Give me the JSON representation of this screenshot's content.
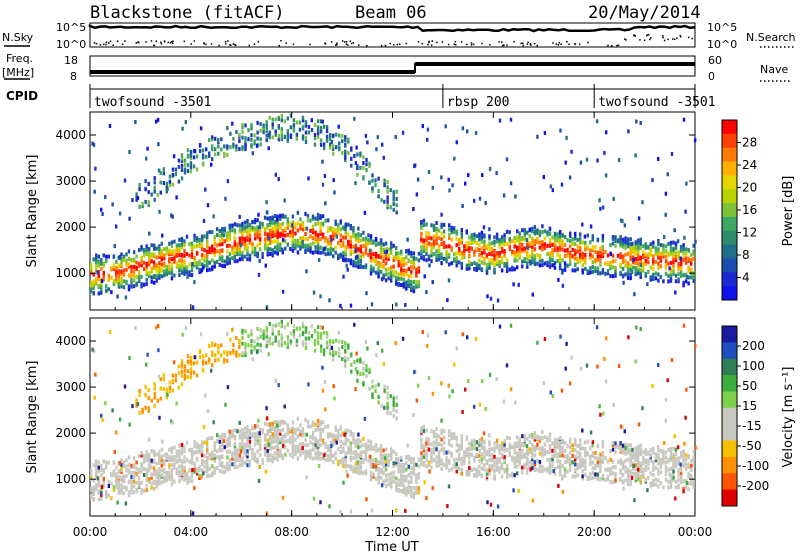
{
  "header": {
    "station": "Blackstone (fitACF)",
    "beam": "Beam 06",
    "date": "20/May/2014"
  },
  "left_labels": {
    "nsky": "N.Sky",
    "freq": "Freq.",
    "freq_unit": "[MHz]",
    "cpid": "CPID"
  },
  "right_labels": {
    "nsearch": "N.Search",
    "nave": "Nave"
  },
  "noise_panel": {
    "left_ticks": [
      "10^5",
      "10^0"
    ],
    "right_ticks": [
      "10^5",
      "10^0"
    ]
  },
  "freq_panel": {
    "left_ticks": [
      "18",
      "8"
    ],
    "right_ticks": [
      "60",
      "0"
    ]
  },
  "cpid_segments": [
    {
      "label": "twofsound -3501",
      "start_hour": 0,
      "end_hour": 14
    },
    {
      "label": "rbsp 200",
      "start_hour": 14,
      "end_hour": 20
    },
    {
      "label": "twofsound -3501",
      "start_hour": 20,
      "end_hour": 24
    }
  ],
  "axes": {
    "xlabel": "Time UT",
    "xticks": [
      "00:00",
      "04:00",
      "08:00",
      "12:00",
      "16:00",
      "20:00",
      "00:00"
    ],
    "ylabel": "Slant Range [km]",
    "yticks": [
      "4000",
      "3000",
      "2000",
      "1000"
    ]
  },
  "colorbars": {
    "power": {
      "label": "Power [dB]",
      "ticks": [
        "28",
        "24",
        "20",
        "16",
        "12",
        "8",
        "4"
      ],
      "colors": [
        "#ff0000",
        "#ff4000",
        "#ff7a00",
        "#ffb000",
        "#e6d600",
        "#b8d200",
        "#7ec23a",
        "#3fa860",
        "#2e8b6e",
        "#1f6e8a",
        "#1a4fb0",
        "#1a2ad0",
        "#1010e8"
      ]
    },
    "velocity": {
      "label": "Velocity [m s⁻¹]",
      "ticks": [
        "200",
        "100",
        "50",
        "15",
        "-15",
        "-50",
        "-100",
        "-200"
      ],
      "colors": [
        "#1a1aa0",
        "#1f4fbf",
        "#2e7e57",
        "#3cae3c",
        "#7ed24a",
        "#c8c8c0",
        "#c8c8c0",
        "#f5c000",
        "#ff9000",
        "#ff5500",
        "#e00000"
      ]
    }
  },
  "chart_data": [
    {
      "type": "heatmap",
      "title": "Power [dB]",
      "xlabel": "Time UT",
      "ylabel": "Slant Range [km]",
      "xlim": [
        0,
        24
      ],
      "ylim": [
        200,
        4500
      ],
      "colorscale_range": [
        0,
        30
      ],
      "ground_band_center_km": {
        "x_hours": [
          0,
          1,
          2,
          3,
          4,
          5,
          6,
          7,
          8,
          9,
          10,
          11,
          12,
          13,
          13.01,
          14,
          15,
          16,
          17,
          18,
          19,
          20,
          21,
          22,
          23,
          24
        ],
        "range_km": [
          1000,
          1050,
          1200,
          1350,
          1450,
          1600,
          1750,
          1850,
          1950,
          1900,
          1750,
          1500,
          1250,
          1050,
          1800,
          1700,
          1550,
          1450,
          1600,
          1650,
          1500,
          1450,
          1400,
          1350,
          1300,
          1250
        ]
      },
      "high_band_center_km": {
        "x_hours": [
          2,
          3,
          4,
          5,
          6,
          7,
          8,
          9,
          10,
          11,
          12
        ],
        "range_km": [
          2700,
          3100,
          3500,
          3800,
          4000,
          4150,
          4200,
          4100,
          3800,
          3200,
          2600
        ]
      }
    },
    {
      "type": "heatmap",
      "title": "Velocity [m s⁻¹]",
      "xlabel": "Time UT",
      "ylabel": "Slant Range [km]",
      "xlim": [
        0,
        24
      ],
      "ylim": [
        200,
        4500
      ],
      "colorscale_range": [
        -200,
        200
      ]
    }
  ]
}
